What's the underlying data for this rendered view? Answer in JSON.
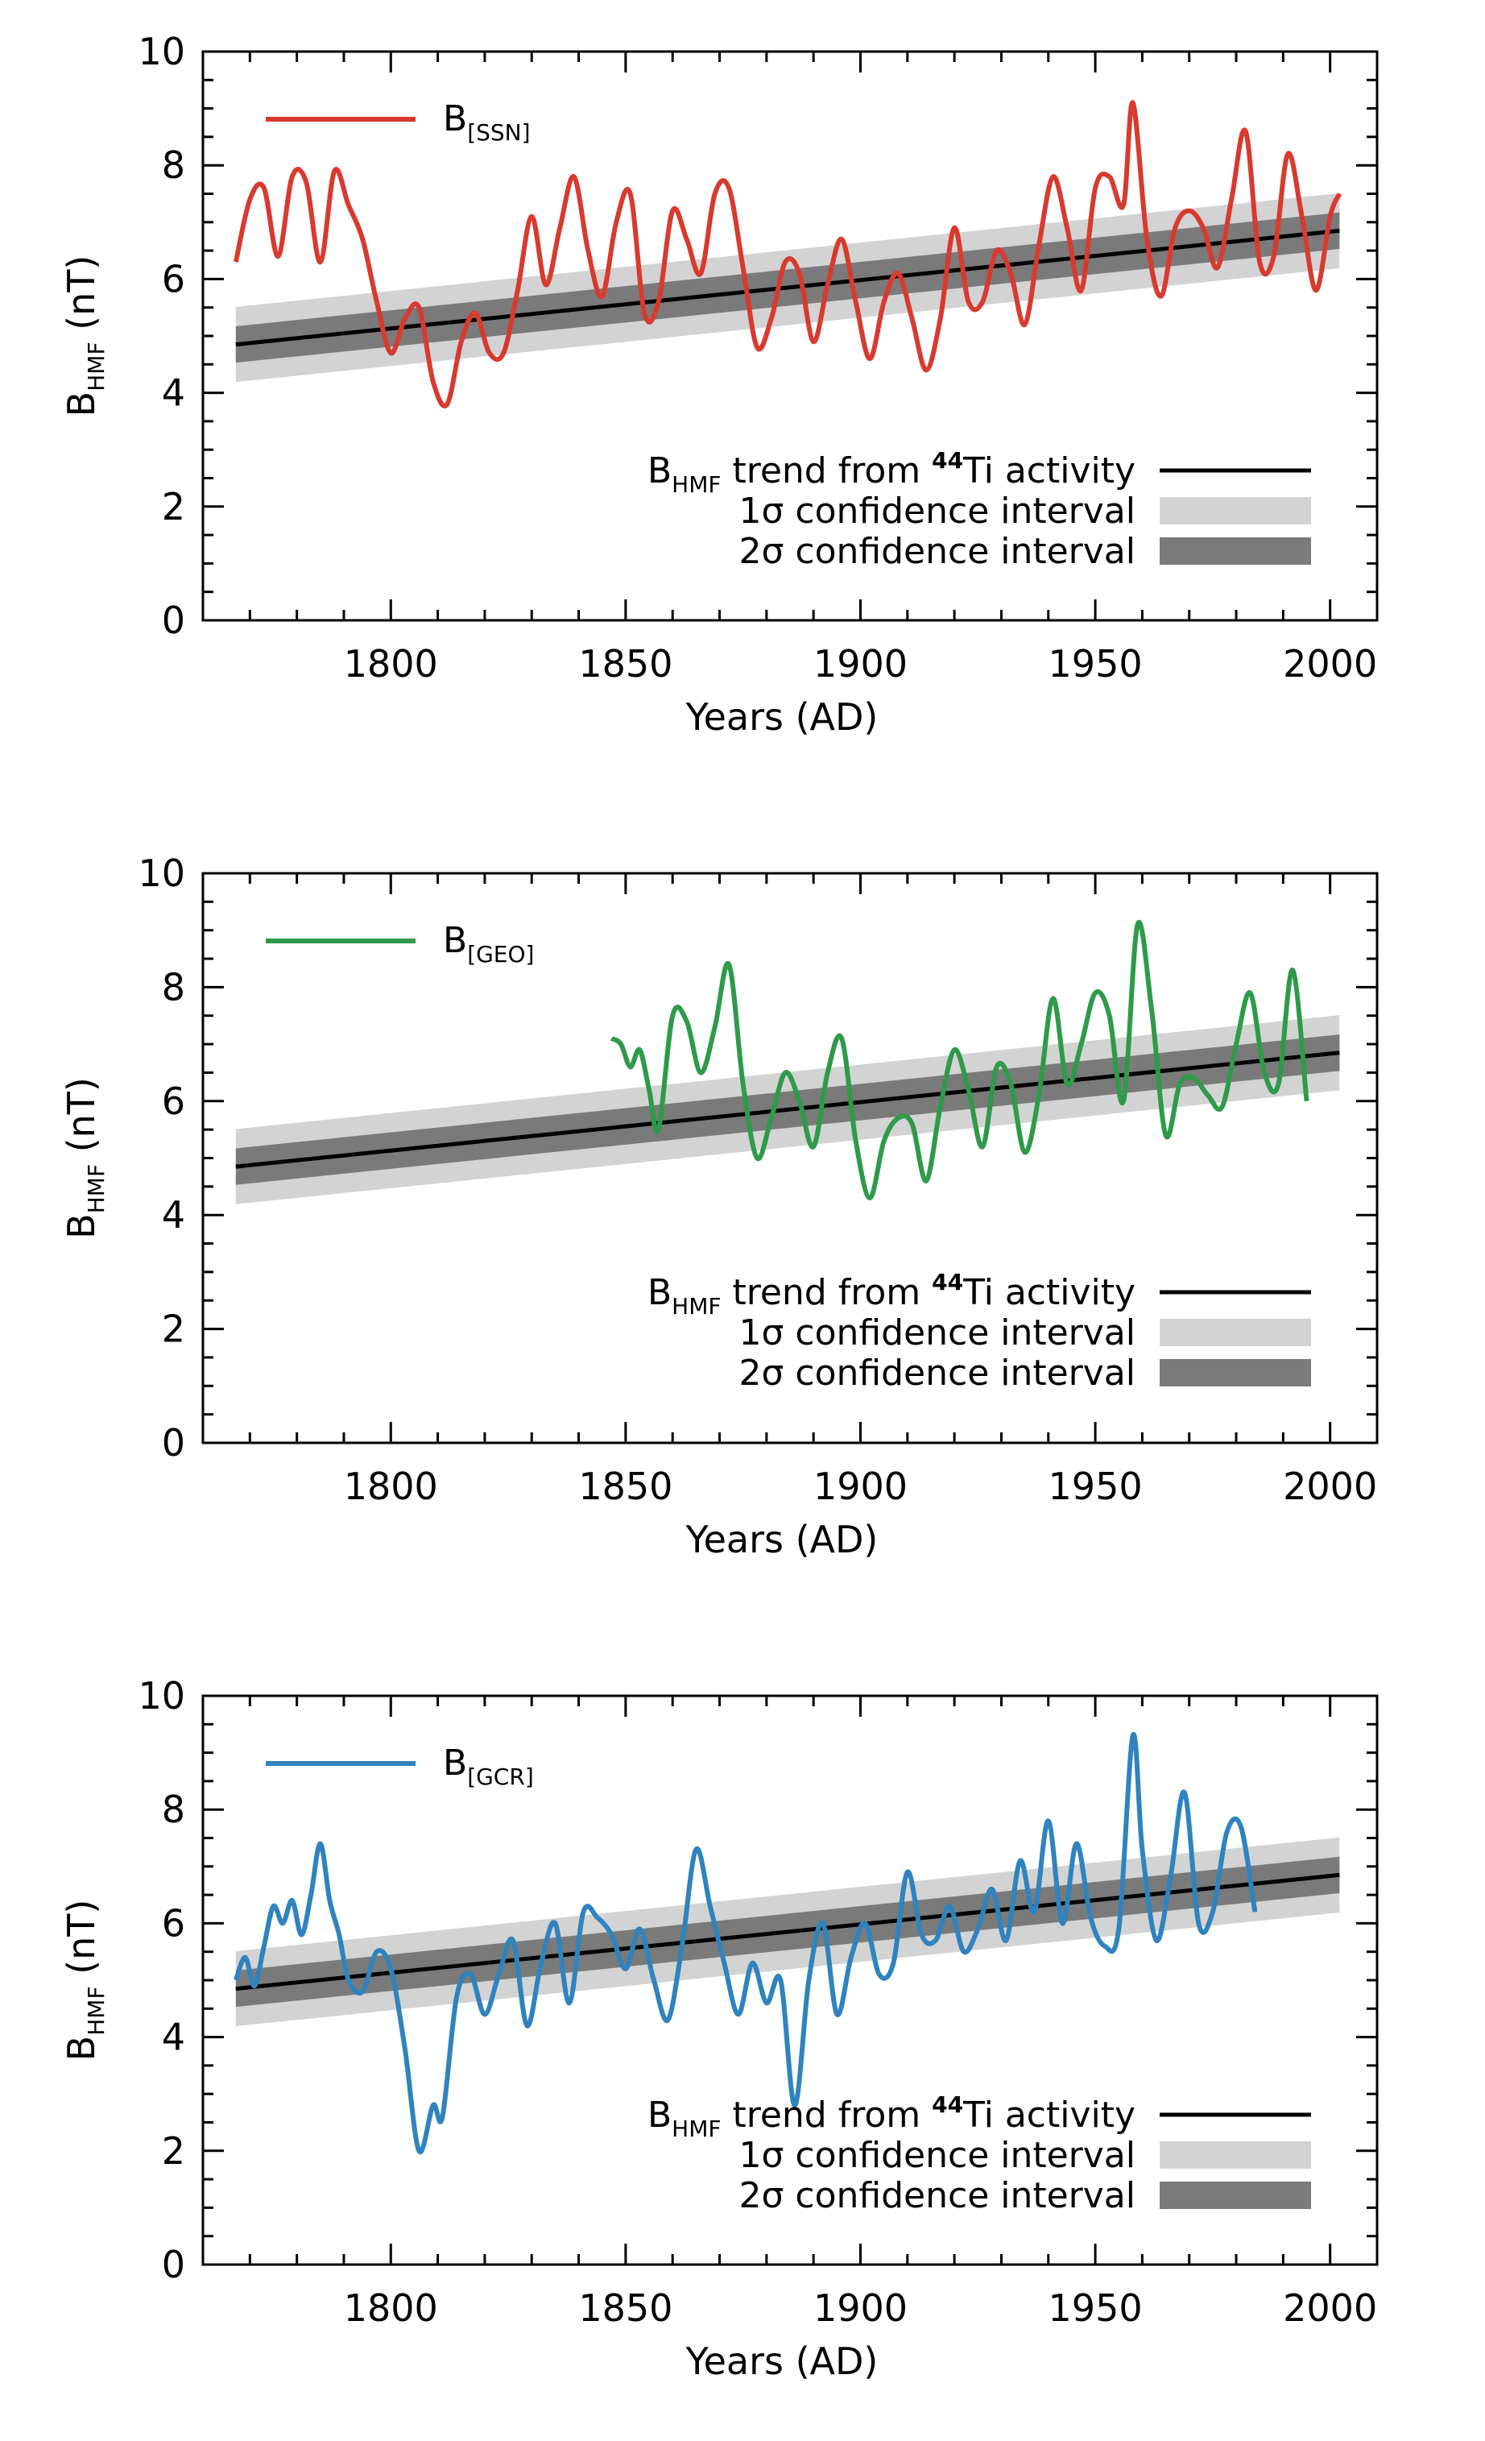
{
  "chart_data": [
    {
      "type": "line",
      "xlabel": "Years (AD)",
      "ylabel": {
        "main": "B",
        "sub": "HMF",
        "unit": " (nT)"
      },
      "xlim": [
        1760,
        2010
      ],
      "ylim": [
        0,
        10
      ],
      "xticks": [
        1800,
        1850,
        1900,
        1950,
        2000
      ],
      "yticks": [
        0,
        2,
        4,
        6,
        8,
        10
      ],
      "series": [
        {
          "name": {
            "main": "B",
            "sub": "[SSN]"
          },
          "color": "#d93a2f",
          "x": [
            1767,
            1770,
            1773,
            1776,
            1779,
            1782,
            1785,
            1788,
            1791,
            1794,
            1797,
            1800,
            1803,
            1806,
            1809,
            1812,
            1815,
            1818,
            1821,
            1824,
            1827,
            1830,
            1833,
            1836,
            1839,
            1842,
            1845,
            1848,
            1851,
            1854,
            1857,
            1860,
            1863,
            1866,
            1869,
            1872,
            1875,
            1878,
            1881,
            1884,
            1887,
            1890,
            1893,
            1896,
            1899,
            1902,
            1905,
            1908,
            1911,
            1914,
            1917,
            1920,
            1923,
            1926,
            1929,
            1932,
            1935,
            1938,
            1941,
            1944,
            1947,
            1950,
            1953,
            1956,
            1958,
            1961,
            1964,
            1967,
            1970,
            1973,
            1976,
            1979,
            1982,
            1985,
            1988,
            1991,
            1994,
            1997,
            2000,
            2002
          ],
          "y": [
            6.3,
            7.4,
            7.6,
            6.4,
            7.8,
            7.7,
            6.3,
            7.9,
            7.3,
            6.7,
            5.6,
            4.7,
            5.3,
            5.5,
            4.2,
            3.8,
            4.9,
            5.4,
            4.7,
            4.7,
            5.8,
            7.1,
            5.9,
            6.9,
            7.8,
            6.5,
            5.7,
            7.0,
            7.5,
            5.4,
            5.6,
            7.2,
            6.7,
            6.1,
            7.5,
            7.6,
            6.2,
            4.8,
            5.3,
            6.3,
            6.1,
            4.9,
            5.9,
            6.7,
            5.6,
            4.6,
            5.6,
            6.1,
            5.3,
            4.4,
            5.3,
            6.9,
            5.6,
            5.6,
            6.5,
            6.1,
            5.2,
            6.6,
            7.8,
            6.9,
            5.8,
            7.6,
            7.8,
            7.3,
            9.1,
            6.7,
            5.7,
            6.9,
            7.2,
            6.9,
            6.2,
            7.4,
            8.6,
            6.3,
            6.4,
            8.2,
            7.1,
            5.8,
            7.1,
            7.5
          ]
        }
      ],
      "trend": {
        "x": [
          1767,
          2002
        ],
        "y": [
          4.85,
          6.85
        ],
        "band1": 0.32,
        "band2": 0.66
      },
      "legend": {
        "trend": {
          "prefix": "B",
          "sub": "HMF",
          "text": " trend from ",
          "sup": "44",
          "suffix": "Ti activity"
        },
        "ci1": "1σ confidence interval",
        "ci2": "2σ confidence interval"
      },
      "colors": {
        "trend": "#000000",
        "ci1": "#d3d3d3",
        "ci2": "#7a7a7a"
      }
    },
    {
      "type": "line",
      "xlabel": "Years (AD)",
      "ylabel": {
        "main": "B",
        "sub": "HMF",
        "unit": " (nT)"
      },
      "xlim": [
        1760,
        2010
      ],
      "ylim": [
        0,
        10
      ],
      "xticks": [
        1800,
        1850,
        1900,
        1950,
        2000
      ],
      "yticks": [
        0,
        2,
        4,
        6,
        8,
        10
      ],
      "series": [
        {
          "name": {
            "main": "B",
            "sub": "[GEO]"
          },
          "color": "#2e9a4a",
          "x": [
            1847,
            1849,
            1851,
            1853,
            1855,
            1857,
            1860,
            1863,
            1866,
            1869,
            1872,
            1875,
            1878,
            1881,
            1884,
            1887,
            1890,
            1893,
            1896,
            1899,
            1902,
            1905,
            1908,
            1911,
            1914,
            1917,
            1920,
            1923,
            1926,
            1929,
            1932,
            1935,
            1938,
            1941,
            1944,
            1947,
            1950,
            1953,
            1956,
            1959,
            1962,
            1965,
            1968,
            1971,
            1974,
            1977,
            1980,
            1983,
            1986,
            1989,
            1992,
            1995
          ],
          "y": [
            7.1,
            7.0,
            6.6,
            6.9,
            6.2,
            5.5,
            7.5,
            7.4,
            6.5,
            7.3,
            8.4,
            6.3,
            5.0,
            5.7,
            6.5,
            6.0,
            5.2,
            6.5,
            7.1,
            5.3,
            4.3,
            5.3,
            5.7,
            5.6,
            4.6,
            5.9,
            6.9,
            6.2,
            5.2,
            6.6,
            6.3,
            5.1,
            6.1,
            7.8,
            6.3,
            7.0,
            7.9,
            7.5,
            6.0,
            9.1,
            7.6,
            5.4,
            6.3,
            6.4,
            6.1,
            5.9,
            7.0,
            7.9,
            6.5,
            6.3,
            8.3,
            6.0
          ]
        }
      ],
      "trend": {
        "x": [
          1767,
          2002
        ],
        "y": [
          4.85,
          6.85
        ],
        "band1": 0.32,
        "band2": 0.66
      },
      "legend": {
        "trend": {
          "prefix": "B",
          "sub": "HMF",
          "text": " trend from ",
          "sup": "44",
          "suffix": "Ti activity"
        },
        "ci1": "1σ confidence interval",
        "ci2": "2σ confidence interval"
      },
      "colors": {
        "trend": "#000000",
        "ci1": "#d3d3d3",
        "ci2": "#7a7a7a"
      }
    },
    {
      "type": "line",
      "xlabel": "Years (AD)",
      "ylabel": {
        "main": "B",
        "sub": "HMF",
        "unit": " (nT)"
      },
      "xlim": [
        1760,
        2010
      ],
      "ylim": [
        0,
        10
      ],
      "xticks": [
        1800,
        1850,
        1900,
        1950,
        2000
      ],
      "yticks": [
        0,
        2,
        4,
        6,
        8,
        10
      ],
      "series": [
        {
          "name": {
            "main": "B",
            "sub": "[GCR]"
          },
          "color": "#2f83bf",
          "x": [
            1767,
            1769,
            1771,
            1773,
            1775,
            1777,
            1779,
            1781,
            1783,
            1785,
            1787,
            1789,
            1791,
            1794,
            1797,
            1800,
            1803,
            1806,
            1809,
            1811,
            1814,
            1817,
            1820,
            1823,
            1826,
            1829,
            1832,
            1835,
            1838,
            1841,
            1844,
            1847,
            1850,
            1853,
            1856,
            1859,
            1862,
            1865,
            1868,
            1871,
            1874,
            1877,
            1880,
            1883,
            1886,
            1889,
            1892,
            1895,
            1898,
            1901,
            1904,
            1907,
            1910,
            1913,
            1916,
            1919,
            1922,
            1925,
            1928,
            1931,
            1934,
            1937,
            1940,
            1943,
            1946,
            1949,
            1952,
            1955,
            1958,
            1960,
            1963,
            1966,
            1969,
            1972,
            1975,
            1978,
            1981,
            1984
          ],
          "y": [
            5.0,
            5.4,
            4.9,
            5.6,
            6.3,
            6.0,
            6.4,
            5.8,
            6.5,
            7.4,
            6.4,
            5.8,
            5.0,
            4.8,
            5.5,
            5.2,
            3.8,
            2.0,
            2.8,
            2.6,
            4.7,
            5.1,
            4.4,
            5.1,
            5.7,
            4.2,
            5.3,
            6.0,
            4.6,
            6.2,
            6.1,
            5.8,
            5.2,
            5.9,
            5.0,
            4.3,
            5.6,
            7.3,
            6.3,
            5.3,
            4.4,
            5.3,
            4.6,
            5.0,
            2.8,
            5.0,
            6.0,
            4.4,
            5.4,
            6.0,
            5.1,
            5.3,
            6.9,
            5.8,
            5.7,
            6.3,
            5.5,
            5.9,
            6.6,
            5.7,
            7.1,
            6.2,
            7.8,
            6.0,
            7.4,
            6.1,
            5.6,
            5.9,
            9.3,
            7.3,
            5.7,
            6.8,
            8.3,
            6.0,
            6.2,
            7.6,
            7.7,
            6.2
          ]
        }
      ],
      "trend": {
        "x": [
          1767,
          2002
        ],
        "y": [
          4.85,
          6.85
        ],
        "band1": 0.32,
        "band2": 0.66
      },
      "legend": {
        "trend": {
          "prefix": "B",
          "sub": "HMF",
          "text": " trend from ",
          "sup": "44",
          "suffix": "Ti activity"
        },
        "ci1": "1σ confidence interval",
        "ci2": "2σ confidence interval"
      },
      "colors": {
        "trend": "#000000",
        "ci1": "#d3d3d3",
        "ci2": "#7a7a7a"
      }
    }
  ]
}
